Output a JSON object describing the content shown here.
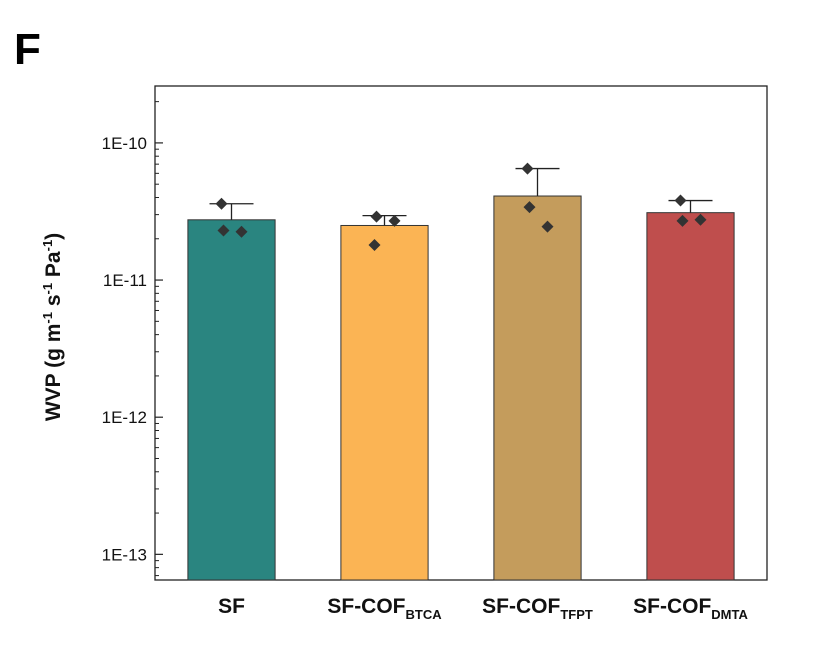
{
  "panel_label": "F",
  "chart_data": {
    "type": "bar",
    "yscale": "log",
    "ylim": [
      6.5e-14,
      2.6e-10
    ],
    "ylabel": "WVP (g m",
    "ylabel_parts": [
      "WVP (g m",
      "-1",
      " s",
      "-1",
      " Pa",
      "-1",
      ")"
    ],
    "y_ticks": [
      {
        "value": 1e-10,
        "label": "1E-10"
      },
      {
        "value": 1e-11,
        "label": "1E-11"
      },
      {
        "value": 1e-12,
        "label": "1E-12"
      },
      {
        "value": 1e-13,
        "label": "1E-13"
      }
    ],
    "categories": [
      {
        "base": "SF",
        "sub": ""
      },
      {
        "base": "SF-COF",
        "sub": "BTCA"
      },
      {
        "base": "SF-COF",
        "sub": "TFPT"
      },
      {
        "base": "SF-COF",
        "sub": "DMTA"
      }
    ],
    "values": [
      2.75e-11,
      2.5e-11,
      4.1e-11,
      3.1e-11
    ],
    "error_upper": [
      3.6e-11,
      2.95e-11,
      6.5e-11,
      3.8e-11
    ],
    "points": [
      [
        3.6e-11,
        2.3e-11,
        2.25e-11
      ],
      [
        1.8e-11,
        2.9e-11,
        2.7e-11
      ],
      [
        6.5e-11,
        3.4e-11,
        2.45e-11
      ],
      [
        3.8e-11,
        2.7e-11,
        2.75e-11
      ]
    ],
    "colors": [
      "#2a8580",
      "#fbb454",
      "#c49c5c",
      "#bf4e4d"
    ],
    "grid": false,
    "legend": "none"
  }
}
